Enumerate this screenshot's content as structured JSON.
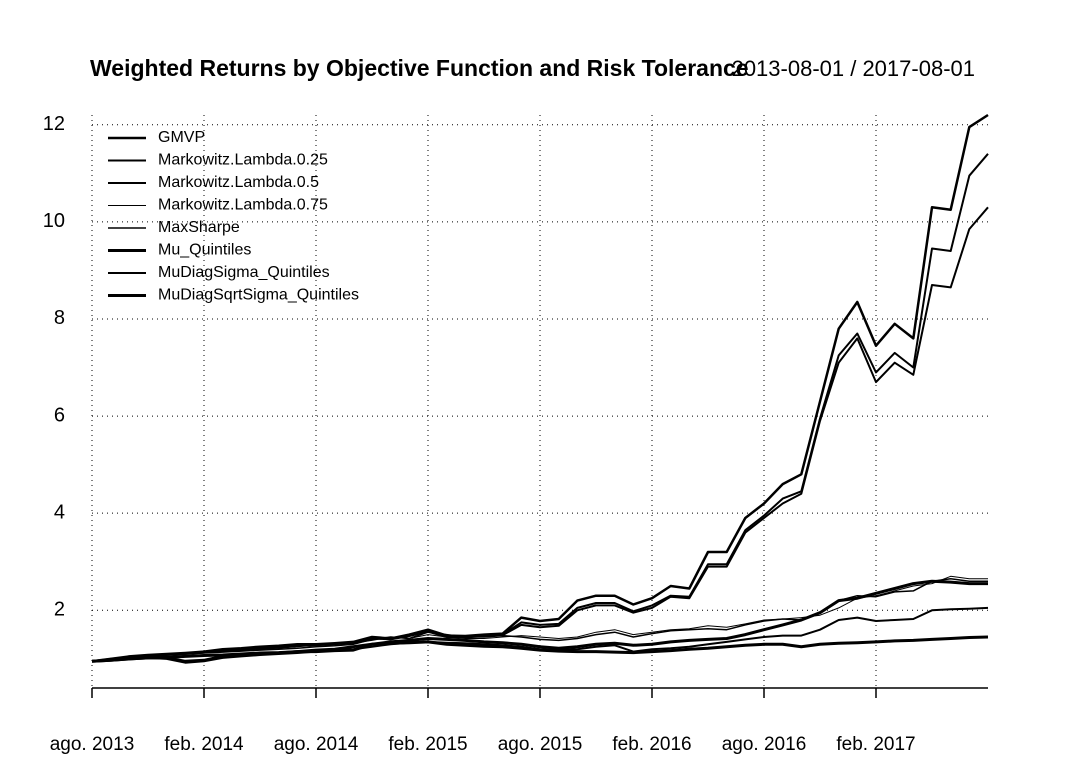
{
  "chart_data": {
    "type": "line",
    "title": "Weighted Returns by Objective Function and Risk Tolerance",
    "subtitle": "2013-08-01 / 2017-08-01",
    "x": [
      "2013-08",
      "2013-09",
      "2013-10",
      "2013-11",
      "2013-12",
      "2014-01",
      "2014-02",
      "2014-03",
      "2014-04",
      "2014-05",
      "2014-06",
      "2014-07",
      "2014-08",
      "2014-09",
      "2014-10",
      "2014-11",
      "2014-12",
      "2015-01",
      "2015-02",
      "2015-03",
      "2015-04",
      "2015-05",
      "2015-06",
      "2015-07",
      "2015-08",
      "2015-09",
      "2015-10",
      "2015-11",
      "2015-12",
      "2016-01",
      "2016-02",
      "2016-03",
      "2016-04",
      "2016-05",
      "2016-06",
      "2016-07",
      "2016-08",
      "2016-09",
      "2016-10",
      "2016-11",
      "2016-12",
      "2017-01",
      "2017-02",
      "2017-03",
      "2017-04",
      "2017-05",
      "2017-06",
      "2017-07",
      "2017-08"
    ],
    "xticks": [
      {
        "value": "2013-08",
        "label": "ago. 2013"
      },
      {
        "value": "2014-02",
        "label": "feb. 2014"
      },
      {
        "value": "2014-08",
        "label": "ago. 2014"
      },
      {
        "value": "2015-02",
        "label": "feb. 2015"
      },
      {
        "value": "2015-08",
        "label": "ago. 2015"
      },
      {
        "value": "2016-02",
        "label": "feb. 2016"
      },
      {
        "value": "2016-08",
        "label": "ago. 2016"
      },
      {
        "value": "2017-02",
        "label": "feb. 2017"
      }
    ],
    "ylim": [
      0.4,
      12.2
    ],
    "yticks": [
      2,
      4,
      6,
      8,
      10,
      12
    ],
    "grid": true,
    "legend": "top-left",
    "series": [
      {
        "name": "GMVP",
        "color": "#000000",
        "width": 2.5,
        "values": [
          0.95,
          1.0,
          1.05,
          1.08,
          1.1,
          1.12,
          1.15,
          1.2,
          1.22,
          1.25,
          1.27,
          1.3,
          1.3,
          1.32,
          1.35,
          1.45,
          1.42,
          1.5,
          1.6,
          1.48,
          1.47,
          1.5,
          1.52,
          1.85,
          1.78,
          1.82,
          2.2,
          2.3,
          2.3,
          2.12,
          2.25,
          2.5,
          2.45,
          3.2,
          3.2,
          3.9,
          4.2,
          4.6,
          4.8,
          6.3,
          7.8,
          8.35,
          7.45,
          7.9,
          7.6,
          10.3,
          10.25,
          11.95,
          12.2
        ]
      },
      {
        "name": "Markowitz.Lambda.0.25",
        "color": "#000000",
        "width": 2,
        "values": [
          0.95,
          1.0,
          1.04,
          1.07,
          1.09,
          1.11,
          1.14,
          1.18,
          1.2,
          1.23,
          1.25,
          1.28,
          1.29,
          1.31,
          1.34,
          1.43,
          1.41,
          1.48,
          1.58,
          1.46,
          1.45,
          1.48,
          1.5,
          1.75,
          1.7,
          1.72,
          2.05,
          2.15,
          2.15,
          1.98,
          2.1,
          2.3,
          2.28,
          2.95,
          2.95,
          3.65,
          3.95,
          4.3,
          4.45,
          5.95,
          7.25,
          7.7,
          6.9,
          7.3,
          7.0,
          9.45,
          9.4,
          10.95,
          11.4
        ]
      },
      {
        "name": "Markowitz.Lambda.0.5",
        "color": "#000000",
        "width": 2,
        "values": [
          0.95,
          0.99,
          1.03,
          1.06,
          1.08,
          1.1,
          1.13,
          1.17,
          1.19,
          1.22,
          1.24,
          1.27,
          1.28,
          1.3,
          1.33,
          1.42,
          1.4,
          1.47,
          1.56,
          1.45,
          1.44,
          1.47,
          1.49,
          1.7,
          1.65,
          1.68,
          2.0,
          2.1,
          2.1,
          1.95,
          2.05,
          2.28,
          2.25,
          2.9,
          2.9,
          3.6,
          3.9,
          4.2,
          4.4,
          5.9,
          7.1,
          7.6,
          6.7,
          7.1,
          6.85,
          8.7,
          8.65,
          9.85,
          10.3
        ]
      },
      {
        "name": "Markowitz.Lambda.0.75",
        "color": "#000000",
        "width": 1,
        "values": [
          0.95,
          1.0,
          1.03,
          1.06,
          1.08,
          1.1,
          1.12,
          1.15,
          1.18,
          1.2,
          1.22,
          1.25,
          1.28,
          1.3,
          1.32,
          1.38,
          1.45,
          1.42,
          1.5,
          1.45,
          1.42,
          1.42,
          1.45,
          1.48,
          1.45,
          1.42,
          1.45,
          1.55,
          1.6,
          1.5,
          1.55,
          1.6,
          1.62,
          1.68,
          1.65,
          1.72,
          1.8,
          1.82,
          1.85,
          1.9,
          2.05,
          2.25,
          2.3,
          2.4,
          2.5,
          2.55,
          2.7,
          2.65,
          2.65
        ]
      },
      {
        "name": "MaxSharpe",
        "color": "#000000",
        "width": 1.5,
        "values": [
          0.95,
          0.98,
          1.02,
          1.05,
          1.08,
          1.1,
          1.12,
          1.14,
          1.16,
          1.18,
          1.2,
          1.22,
          1.25,
          1.27,
          1.3,
          1.4,
          1.45,
          1.42,
          1.55,
          1.5,
          1.45,
          1.45,
          1.48,
          1.45,
          1.4,
          1.38,
          1.42,
          1.5,
          1.55,
          1.45,
          1.52,
          1.58,
          1.6,
          1.62,
          1.6,
          1.7,
          1.78,
          1.82,
          1.8,
          1.95,
          2.2,
          2.3,
          2.28,
          2.38,
          2.4,
          2.6,
          2.65,
          2.6,
          2.6
        ]
      },
      {
        "name": "Mu_Quintiles",
        "color": "#000000",
        "width": 3,
        "values": [
          0.95,
          0.97,
          1.0,
          1.02,
          1.02,
          0.95,
          0.97,
          1.05,
          1.08,
          1.1,
          1.12,
          1.15,
          1.18,
          1.2,
          1.25,
          1.3,
          1.35,
          1.38,
          1.42,
          1.4,
          1.38,
          1.35,
          1.33,
          1.3,
          1.25,
          1.22,
          1.25,
          1.3,
          1.32,
          1.28,
          1.3,
          1.35,
          1.38,
          1.4,
          1.42,
          1.5,
          1.6,
          1.7,
          1.8,
          1.95,
          2.2,
          2.25,
          2.35,
          2.45,
          2.55,
          2.6,
          2.58,
          2.55,
          2.55
        ]
      },
      {
        "name": "MuDiagSigma_Quintiles",
        "color": "#000000",
        "width": 2,
        "values": [
          0.95,
          0.98,
          1.0,
          1.02,
          1.0,
          0.92,
          0.95,
          1.02,
          1.05,
          1.08,
          1.1,
          1.12,
          1.15,
          1.18,
          1.2,
          1.25,
          1.3,
          1.33,
          1.35,
          1.33,
          1.32,
          1.3,
          1.28,
          1.25,
          1.2,
          1.18,
          1.2,
          1.25,
          1.28,
          1.15,
          1.2,
          1.22,
          1.25,
          1.3,
          1.35,
          1.4,
          1.45,
          1.48,
          1.48,
          1.6,
          1.8,
          1.85,
          1.78,
          1.8,
          1.82,
          2.0,
          2.02,
          2.03,
          2.05
        ]
      },
      {
        "name": "MuDiagSqrtSigma_Quintiles",
        "color": "#000000",
        "width": 3,
        "values": [
          0.95,
          0.97,
          1.0,
          1.02,
          1.03,
          1.05,
          1.07,
          1.08,
          1.1,
          1.12,
          1.13,
          1.15,
          1.15,
          1.17,
          1.18,
          1.3,
          1.32,
          1.33,
          1.35,
          1.3,
          1.28,
          1.26,
          1.25,
          1.22,
          1.18,
          1.16,
          1.15,
          1.15,
          1.14,
          1.13,
          1.15,
          1.17,
          1.2,
          1.22,
          1.25,
          1.28,
          1.3,
          1.3,
          1.25,
          1.3,
          1.32,
          1.33,
          1.35,
          1.37,
          1.38,
          1.4,
          1.42,
          1.44,
          1.45
        ]
      }
    ]
  }
}
